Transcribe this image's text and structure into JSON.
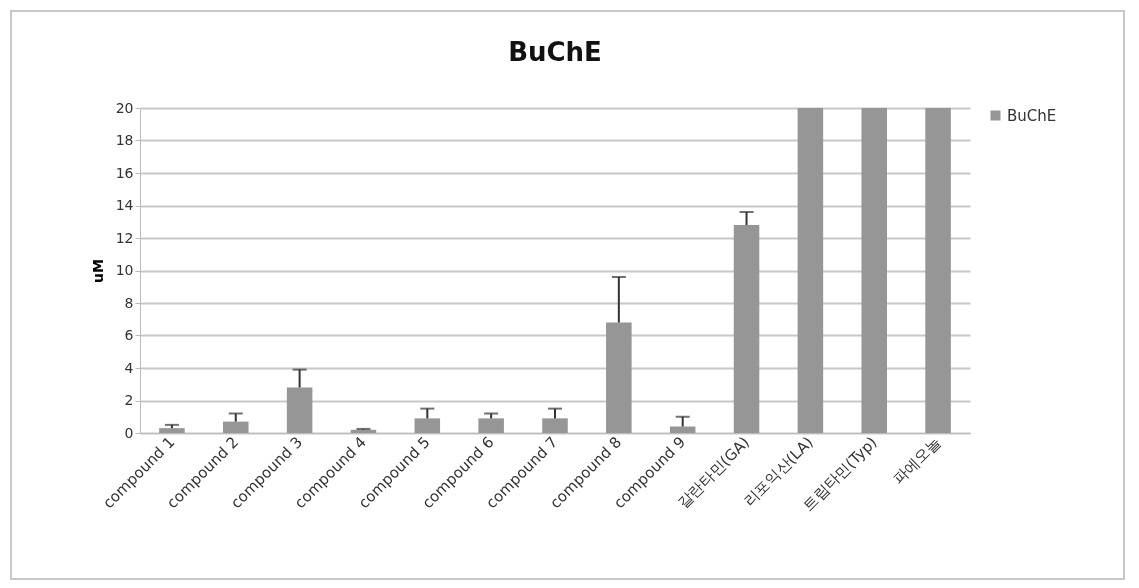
{
  "chart_data": {
    "type": "bar",
    "title": "BuChE",
    "ylabel": "uM",
    "categories": [
      "compound 1",
      "compound 2",
      "compound 3",
      "compound 4",
      "compound 5",
      "compound 6",
      "compound 7",
      "compound 8",
      "compound 9",
      "갈란타민(GA)",
      "리포익산(LA)",
      "트립타민(Typ)",
      "파에오놀"
    ],
    "series": [
      {
        "name": "BuChE",
        "color": "#969696",
        "values": [
          0.3,
          0.7,
          2.8,
          0.2,
          0.9,
          0.9,
          0.9,
          6.8,
          0.4,
          12.8,
          20,
          20,
          20
        ],
        "errors": [
          [
            0.3,
            0.5
          ],
          [
            0.7,
            1.2
          ],
          [
            2.8,
            3.9
          ],
          [
            0.2,
            0.25
          ],
          [
            0.9,
            1.5
          ],
          [
            0.9,
            1.2
          ],
          [
            0.9,
            1.5
          ],
          [
            6.8,
            9.6
          ],
          [
            0.4,
            1.0
          ],
          [
            12.8,
            13.6
          ],
          null,
          null,
          null
        ]
      }
    ],
    "ylim": [
      0,
      20
    ],
    "yticks": [
      0,
      2,
      4,
      6,
      8,
      10,
      12,
      14,
      16,
      18,
      20
    ],
    "grid": "y",
    "legend": "right"
  }
}
